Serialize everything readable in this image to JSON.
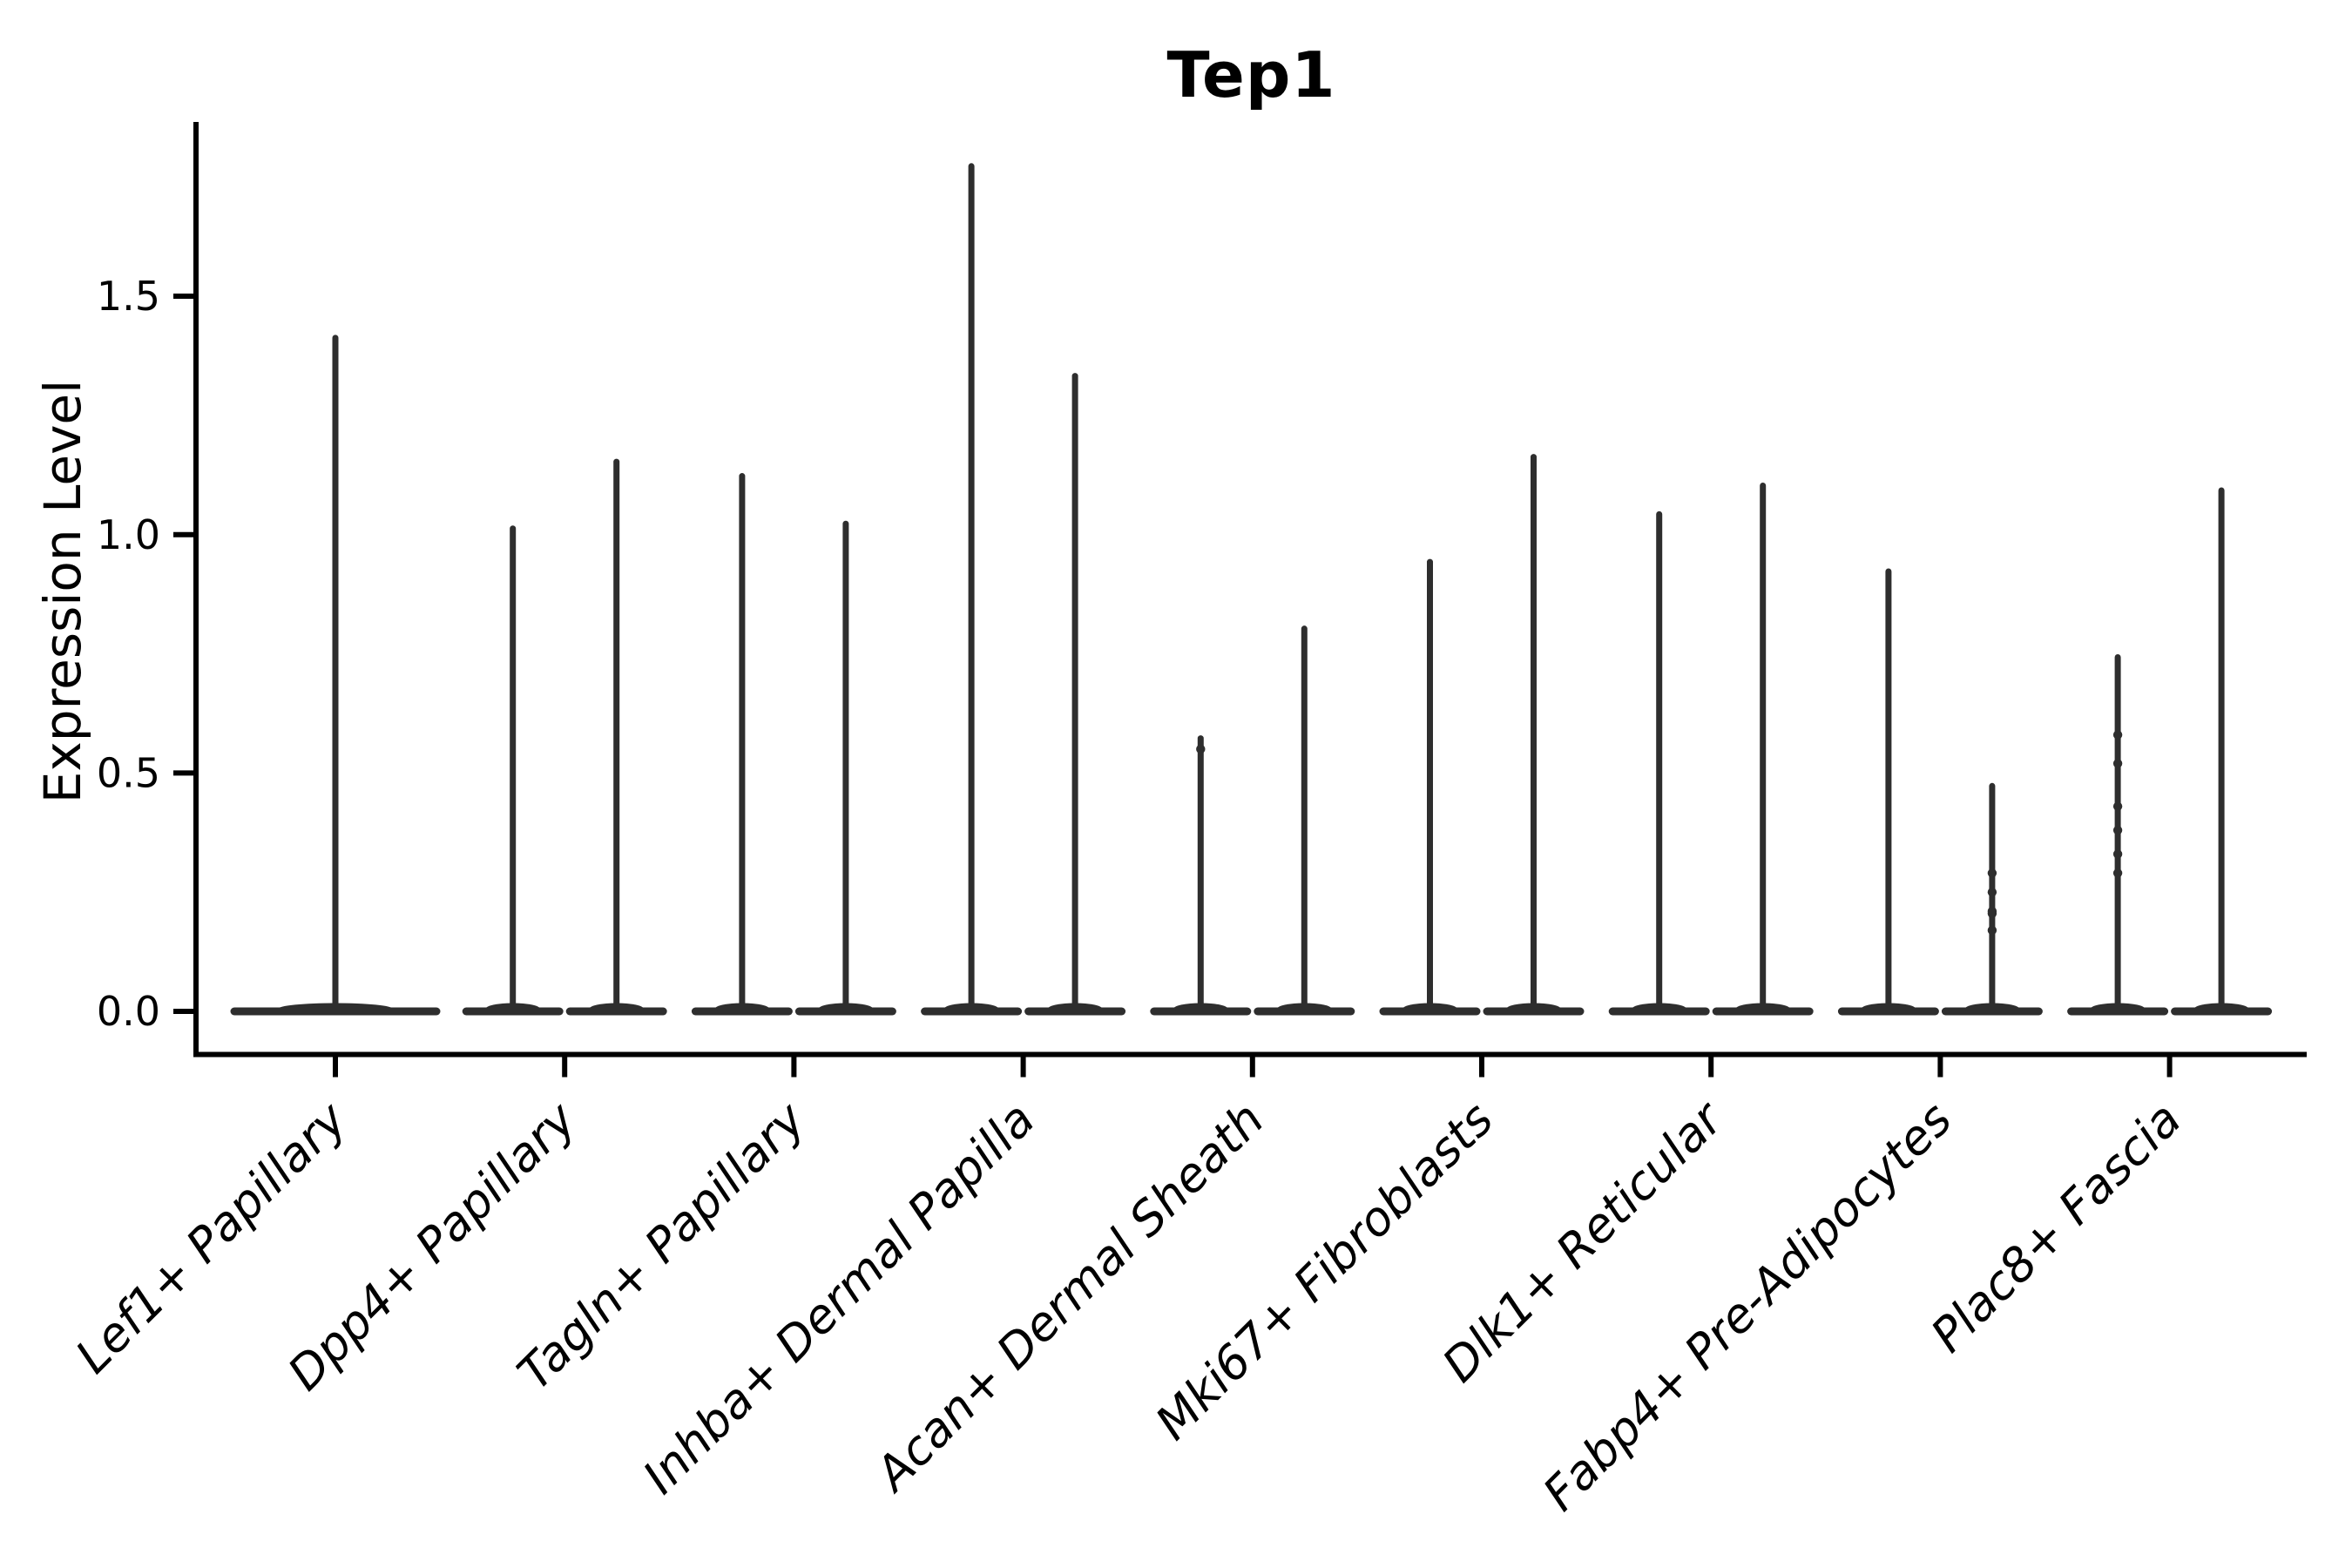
{
  "figure": {
    "background": "#ffffff"
  },
  "chart_data": {
    "type": "violin",
    "title": "Tep1",
    "ylabel": "Expression Level",
    "xlabel": "",
    "grid": false,
    "legend": "none",
    "ylim": [
      -0.09,
      1.86
    ],
    "yticks_labels": [
      "0.0",
      "0.5",
      "1.0",
      "1.5"
    ],
    "ytick_values": [
      0.0,
      0.5,
      1.0,
      1.5
    ],
    "violin_color": "#2e2e2e",
    "axis_color": "#000000",
    "x_tick_label_style": "italic",
    "x_tick_label_rotation_deg": 45,
    "categories": [
      {
        "label": "Lef1+ Papillary",
        "violins": [
          {
            "max": 1.42,
            "dots": []
          }
        ]
      },
      {
        "label": "Dpp4+ Papillary",
        "violins": [
          {
            "max": 1.02,
            "dots": []
          },
          {
            "max": 1.16,
            "dots": []
          }
        ]
      },
      {
        "label": "Tagln+ Papillary",
        "violins": [
          {
            "max": 1.13,
            "dots": []
          },
          {
            "max": 1.03,
            "dots": []
          }
        ]
      },
      {
        "label": "Inhba+ Dermal Papilla",
        "violins": [
          {
            "max": 1.78,
            "dots": []
          },
          {
            "max": 1.34,
            "dots": []
          }
        ]
      },
      {
        "label": "Acan+ Dermal Sheath",
        "violins": [
          {
            "max": 0.58,
            "dots": [
              0.55
            ]
          },
          {
            "max": 0.81,
            "dots": []
          }
        ]
      },
      {
        "label": "Mki67+ Fibroblasts",
        "violins": [
          {
            "max": 0.95,
            "dots": []
          },
          {
            "max": 1.17,
            "dots": []
          }
        ]
      },
      {
        "label": "Dlk1+ Reticular",
        "violins": [
          {
            "max": 1.05,
            "dots": []
          },
          {
            "max": 1.11,
            "dots": []
          }
        ]
      },
      {
        "label": "Fabp4+ Pre-Adipocytes",
        "violins": [
          {
            "max": 0.93,
            "dots": []
          },
          {
            "max": 0.48,
            "dots": [
              0.29,
              0.25,
              0.21,
              0.205,
              0.17
            ]
          }
        ]
      },
      {
        "label": "Plac8+ Fascia",
        "violins": [
          {
            "max": 0.75,
            "dots": [
              0.58,
              0.52,
              0.43,
              0.38,
              0.33,
              0.29
            ]
          },
          {
            "max": 1.1,
            "dots": []
          }
        ]
      }
    ]
  }
}
